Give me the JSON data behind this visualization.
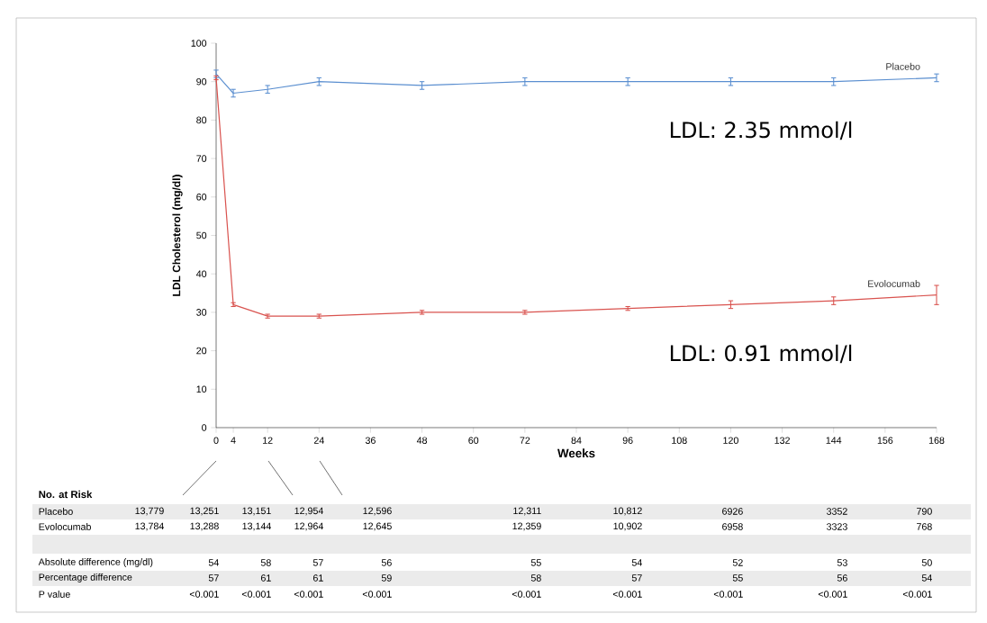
{
  "chart_data": {
    "type": "line",
    "xlabel": "Weeks",
    "ylabel": "LDL Cholesterol (mg/dl)",
    "x": [
      0,
      4,
      12,
      24,
      48,
      72,
      96,
      120,
      144,
      168
    ],
    "series": [
      {
        "name": "Placebo",
        "color": "#5b8fd0",
        "values": [
          92,
          87,
          88,
          90,
          89,
          90,
          90,
          90,
          90,
          91
        ],
        "errors": [
          1,
          1,
          1,
          1,
          1,
          1,
          1,
          1,
          1,
          1
        ]
      },
      {
        "name": "Evolocumab",
        "color": "#d9534f",
        "values": [
          91,
          32,
          29,
          29,
          30,
          30,
          31,
          32,
          33,
          34.5
        ],
        "errors": [
          0.5,
          0.5,
          0.5,
          0.5,
          0.5,
          0.5,
          0.5,
          1,
          1,
          2.5
        ]
      }
    ],
    "xlim": [
      0,
      168
    ],
    "ylim": [
      0,
      100
    ],
    "xticks": [
      0,
      4,
      12,
      24,
      36,
      48,
      60,
      72,
      84,
      96,
      108,
      120,
      132,
      144,
      156,
      168
    ],
    "yticks": [
      0,
      10,
      20,
      30,
      40,
      50,
      60,
      70,
      80,
      90,
      100
    ],
    "grid": false,
    "legend": false,
    "marker": "none",
    "line_style": "solid",
    "annotations": [
      "LDL: 2.35 mmol/l",
      "LDL: 0.91 mmol/l",
      "No. at Risk",
      "Placebo",
      "13,779",
      "13,251",
      "13,151",
      "12,954",
      "12,596",
      "12,311",
      "10,812",
      "6926",
      "3352",
      "790",
      "Evolocumab",
      "13,784",
      "13,288",
      "13,144",
      "12,964",
      "12,645",
      "12,359",
      "10,902",
      "6958",
      "3323",
      "768",
      "Absolute difference (mg/dl)",
      "54",
      "58",
      "57",
      "56",
      "55",
      "54",
      "52",
      "53",
      "50",
      "Percentage difference",
      "57",
      "61",
      "61",
      "59",
      "58",
      "57",
      "55",
      "56",
      "54",
      "P value",
      "<0.001",
      "<0.001",
      "<0.001",
      "<0.001",
      "<0.001",
      "<0.001",
      "<0.001",
      "<0.001",
      "<0.001"
    ]
  }
}
